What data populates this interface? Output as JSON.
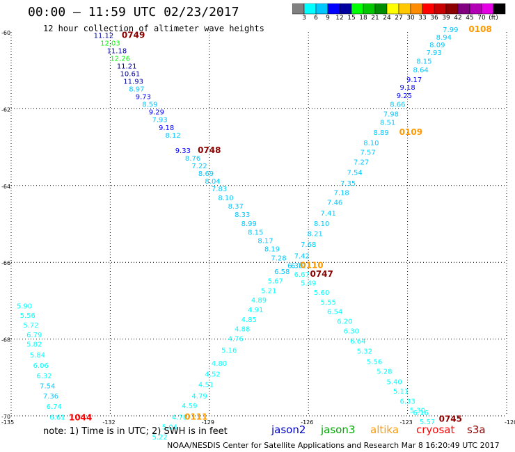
{
  "title": "00:00 — 11:59 UTC 02/23/2017",
  "subtitle": "12 hour collection of altimeter wave heights",
  "colorbar": {
    "colors": [
      "#808080",
      "#00ffff",
      "#00c8ff",
      "#0000ff",
      "#0000a0",
      "#00ff00",
      "#00c800",
      "#008c00",
      "#ffff00",
      "#ffc800",
      "#ff8c00",
      "#ff0000",
      "#c80000",
      "#8c0000",
      "#800080",
      "#b400b4",
      "#e600e6",
      "#000000"
    ],
    "labels": [
      "3",
      "6",
      "9",
      "12",
      "15",
      "18",
      "21",
      "24",
      "27",
      "30",
      "33",
      "36",
      "39",
      "42",
      "45",
      "70",
      "(ft)"
    ]
  },
  "map": {
    "lat_labels": [
      "-60",
      "-62",
      "-64",
      "-66",
      "-68",
      "-70"
    ],
    "lon_labels": [
      "-135",
      "-132",
      "-129",
      "-126",
      "-123",
      "-120"
    ]
  },
  "chart_data": {
    "type": "scatter",
    "title": "12 hour collection of altimeter wave heights",
    "xlabel": "",
    "ylabel": "",
    "xlim": [
      -135,
      -120
    ],
    "ylim": [
      -70,
      -60
    ],
    "grid": true,
    "passes": [
      {
        "label": "0749",
        "satellite": "jason2",
        "pts": [
          {
            "x": -132.2,
            "y": -60.15,
            "v": "11.12",
            "c": "#0000a0"
          },
          {
            "x": -132.0,
            "y": -60.35,
            "v": "12.03",
            "c": "#00ff00"
          },
          {
            "x": -131.8,
            "y": -60.55,
            "v": "11.18",
            "c": "#0000a0"
          },
          {
            "x": -131.7,
            "y": -60.75,
            "v": "12.26",
            "c": "#00ff00"
          },
          {
            "x": -131.5,
            "y": -60.95,
            "v": "11.21",
            "c": "#0000a0"
          },
          {
            "x": -131.4,
            "y": -61.15,
            "v": "10.61",
            "c": "#0000a0"
          },
          {
            "x": -131.3,
            "y": -61.35,
            "v": "11.93",
            "c": "#0000a0"
          },
          {
            "x": -131.2,
            "y": -61.55,
            "v": "8.97",
            "c": "#00c8ff"
          },
          {
            "x": -131.0,
            "y": -61.75,
            "v": "9.73",
            "c": "#0000ff"
          },
          {
            "x": -130.8,
            "y": -61.95,
            "v": "8.59",
            "c": "#00c8ff"
          },
          {
            "x": -130.6,
            "y": -62.15,
            "v": "9.29",
            "c": "#0000ff"
          },
          {
            "x": -130.5,
            "y": -62.35,
            "v": "7.93",
            "c": "#00c8ff"
          },
          {
            "x": -130.3,
            "y": -62.55,
            "v": "9.18",
            "c": "#0000ff"
          },
          {
            "x": -130.1,
            "y": -62.75,
            "v": "8.12",
            "c": "#00c8ff"
          },
          {
            "x": -129.8,
            "y": -63.15,
            "v": "9.33",
            "c": "#0000ff"
          },
          {
            "x": -129.5,
            "y": -63.35,
            "v": "8.76",
            "c": "#00c8ff"
          },
          {
            "x": -129.3,
            "y": -63.55,
            "v": "7.22",
            "c": "#00c8ff"
          },
          {
            "x": -129.1,
            "y": -63.75,
            "v": "8.69",
            "c": "#00c8ff"
          },
          {
            "x": -128.9,
            "y": -63.95,
            "v": "8.04",
            "c": "#00c8ff"
          },
          {
            "x": -128.7,
            "y": -64.15,
            "v": "7.83",
            "c": "#00c8ff"
          },
          {
            "x": -128.5,
            "y": -64.38,
            "v": "8.10",
            "c": "#00c8ff"
          },
          {
            "x": -128.2,
            "y": -64.6,
            "v": "8.37",
            "c": "#00c8ff"
          },
          {
            "x": -128.0,
            "y": -64.82,
            "v": "8.33",
            "c": "#00c8ff"
          },
          {
            "x": -127.8,
            "y": -65.05,
            "v": "8.99",
            "c": "#00c8ff"
          },
          {
            "x": -127.6,
            "y": -65.28,
            "v": "8.15",
            "c": "#00c8ff"
          },
          {
            "x": -127.3,
            "y": -65.5,
            "v": "8.17",
            "c": "#00c8ff"
          },
          {
            "x": -127.1,
            "y": -65.72,
            "v": "8.19",
            "c": "#00c8ff"
          },
          {
            "x": -126.9,
            "y": -65.95,
            "v": "7.28",
            "c": "#00c8ff"
          },
          {
            "x": -126.4,
            "y": -66.15,
            "v": "6.30",
            "c": "#00c8ff"
          },
          {
            "x": -126.2,
            "y": -66.38,
            "v": "6.67",
            "c": "#00ffff"
          },
          {
            "x": -126.0,
            "y": -66.6,
            "v": "5.49",
            "c": "#00ffff"
          },
          {
            "x": -125.6,
            "y": -66.85,
            "v": "5.60",
            "c": "#00ffff"
          },
          {
            "x": -125.4,
            "y": -67.1,
            "v": "5.55",
            "c": "#00ffff"
          },
          {
            "x": -125.2,
            "y": -67.35,
            "v": "6.54",
            "c": "#00ffff"
          },
          {
            "x": -124.9,
            "y": -67.6,
            "v": "6.20",
            "c": "#00ffff"
          },
          {
            "x": -124.7,
            "y": -67.85,
            "v": "6.30",
            "c": "#00ffff"
          },
          {
            "x": -124.5,
            "y": -68.12,
            "v": "6.64",
            "c": "#00ffff"
          },
          {
            "x": -124.3,
            "y": -68.38,
            "v": "5.32",
            "c": "#00ffff"
          },
          {
            "x": -124.0,
            "y": -68.65,
            "v": "5.56",
            "c": "#00ffff"
          },
          {
            "x": -123.7,
            "y": -68.9,
            "v": "5.28",
            "c": "#00ffff"
          },
          {
            "x": -123.4,
            "y": -69.18,
            "v": "5.40",
            "c": "#00ffff"
          },
          {
            "x": -123.2,
            "y": -69.42,
            "v": "5.11",
            "c": "#00ffff"
          },
          {
            "x": -123.0,
            "y": -69.68,
            "v": "6.33",
            "c": "#00ffff"
          }
        ]
      },
      {
        "label": "0108",
        "satellite": "jason3",
        "pts": [
          {
            "x": -121.7,
            "y": -60.0,
            "v": "7.99",
            "c": "#00c8ff"
          },
          {
            "x": -121.9,
            "y": -60.2,
            "v": "8.94",
            "c": "#00c8ff"
          },
          {
            "x": -122.1,
            "y": -60.4,
            "v": "8.09",
            "c": "#00c8ff"
          },
          {
            "x": -122.2,
            "y": -60.6,
            "v": "7.93",
            "c": "#00c8ff"
          },
          {
            "x": -122.5,
            "y": -60.82,
            "v": "8.15",
            "c": "#00c8ff"
          },
          {
            "x": -122.6,
            "y": -61.05,
            "v": "8.64",
            "c": "#00c8ff"
          },
          {
            "x": -122.8,
            "y": -61.3,
            "v": "9.17",
            "c": "#0000ff"
          },
          {
            "x": -123.0,
            "y": -61.5,
            "v": "9.18",
            "c": "#0000ff"
          },
          {
            "x": -123.1,
            "y": -61.72,
            "v": "9.25",
            "c": "#0000ff"
          },
          {
            "x": -123.3,
            "y": -61.95,
            "v": "8.66",
            "c": "#00c8ff"
          },
          {
            "x": -123.5,
            "y": -62.2,
            "v": "7.98",
            "c": "#00c8ff"
          },
          {
            "x": -123.6,
            "y": -62.42,
            "v": "8.51",
            "c": "#00c8ff"
          },
          {
            "x": -123.8,
            "y": -62.68,
            "v": "8.89",
            "c": "#00c8ff"
          },
          {
            "x": -124.1,
            "y": -62.95,
            "v": "8.10",
            "c": "#00c8ff"
          },
          {
            "x": -124.2,
            "y": -63.2,
            "v": "7.57",
            "c": "#00c8ff"
          },
          {
            "x": -124.4,
            "y": -63.45,
            "v": "7.27",
            "c": "#00c8ff"
          },
          {
            "x": -124.6,
            "y": -63.72,
            "v": "7.54",
            "c": "#00c8ff"
          },
          {
            "x": -124.8,
            "y": -64.0,
            "v": "7.35",
            "c": "#00c8ff"
          },
          {
            "x": -125.0,
            "y": -64.25,
            "v": "7.18",
            "c": "#00c8ff"
          },
          {
            "x": -125.2,
            "y": -64.5,
            "v": "7.46",
            "c": "#00c8ff"
          },
          {
            "x": -125.4,
            "y": -64.78,
            "v": "7.41",
            "c": "#00c8ff"
          },
          {
            "x": -125.6,
            "y": -65.05,
            "v": "8.10",
            "c": "#00c8ff"
          },
          {
            "x": -125.8,
            "y": -65.32,
            "v": "8.21",
            "c": "#00c8ff"
          },
          {
            "x": -126.0,
            "y": -65.6,
            "v": "7.68",
            "c": "#00c8ff"
          },
          {
            "x": -126.2,
            "y": -65.9,
            "v": "7.42",
            "c": "#00c8ff"
          },
          {
            "x": -126.3,
            "y": -66.15,
            "v": "6.72",
            "c": "#00c8ff"
          }
        ]
      },
      {
        "label": "0110",
        "satellite": "altika",
        "pts": [
          {
            "x": -126.8,
            "y": -66.3,
            "v": "6.58",
            "c": "#00c8ff"
          },
          {
            "x": -127.0,
            "y": -66.55,
            "v": "5.67",
            "c": "#00ffff"
          },
          {
            "x": -127.2,
            "y": -66.8,
            "v": "5.21",
            "c": "#00ffff"
          },
          {
            "x": -127.5,
            "y": -67.05,
            "v": "4.89",
            "c": "#00ffff"
          },
          {
            "x": -127.6,
            "y": -67.3,
            "v": "4.91",
            "c": "#00ffff"
          },
          {
            "x": -127.8,
            "y": -67.55,
            "v": "4.85",
            "c": "#00ffff"
          },
          {
            "x": -128.0,
            "y": -67.8,
            "v": "4.88",
            "c": "#00ffff"
          },
          {
            "x": -128.2,
            "y": -68.05,
            "v": "4.76",
            "c": "#00ffff"
          },
          {
            "x": -128.4,
            "y": -68.35,
            "v": "5.16",
            "c": "#00ffff"
          },
          {
            "x": -128.7,
            "y": -68.7,
            "v": "4.80",
            "c": "#00ffff"
          },
          {
            "x": -128.9,
            "y": -68.98,
            "v": "4.52",
            "c": "#00ffff"
          },
          {
            "x": -129.1,
            "y": -69.25,
            "v": "4.51",
            "c": "#00ffff"
          },
          {
            "x": -129.3,
            "y": -69.55,
            "v": "4.79",
            "c": "#00ffff"
          },
          {
            "x": -129.6,
            "y": -69.8,
            "v": "4.59",
            "c": "#00ffff"
          }
        ]
      },
      {
        "label": "0111",
        "satellite": "altika",
        "pts": [
          {
            "x": -129.9,
            "y": -70.1,
            "v": "4.78",
            "c": "#00ffff"
          },
          {
            "x": -130.2,
            "y": -70.35,
            "v": "5.04",
            "c": "#00ffff"
          },
          {
            "x": -130.5,
            "y": -70.62,
            "v": "5.22",
            "c": "#00ffff"
          }
        ]
      },
      {
        "label": "1044",
        "satellite": "cryosat",
        "pts": [
          {
            "x": -134.6,
            "y": -67.2,
            "v": "5.90",
            "c": "#00ffff"
          },
          {
            "x": -134.5,
            "y": -67.45,
            "v": "5.56",
            "c": "#00ffff"
          },
          {
            "x": -134.4,
            "y": -67.7,
            "v": "5.72",
            "c": "#00ffff"
          },
          {
            "x": -134.3,
            "y": -67.95,
            "v": "6.79",
            "c": "#00ffff"
          },
          {
            "x": -134.3,
            "y": -68.2,
            "v": "5.82",
            "c": "#00ffff"
          },
          {
            "x": -134.2,
            "y": -68.48,
            "v": "5.84",
            "c": "#00ffff"
          },
          {
            "x": -134.1,
            "y": -68.75,
            "v": "6.06",
            "c": "#00ffff"
          },
          {
            "x": -134.0,
            "y": -69.02,
            "v": "6.32",
            "c": "#00ffff"
          },
          {
            "x": -133.9,
            "y": -69.28,
            "v": "7.54",
            "c": "#00c8ff"
          },
          {
            "x": -133.8,
            "y": -69.55,
            "v": "7.36",
            "c": "#00c8ff"
          },
          {
            "x": -133.7,
            "y": -69.82,
            "v": "6.74",
            "c": "#00ffff"
          },
          {
            "x": -133.6,
            "y": -70.1,
            "v": "6.61",
            "c": "#00ffff"
          }
        ]
      },
      {
        "label": "0745",
        "satellite": "jason2",
        "pts": [
          {
            "x": -122.7,
            "y": -69.92,
            "v": "5.30",
            "c": "#00ffff"
          },
          {
            "x": -122.6,
            "y": -69.98,
            "v": "6.16",
            "c": "#00ffff"
          },
          {
            "x": -122.4,
            "y": -70.22,
            "v": "5.57",
            "c": "#00ffff"
          }
        ]
      }
    ],
    "track_labels": [
      {
        "text": "0749",
        "x": -131.3,
        "y": -60.15,
        "c": "#8c0000"
      },
      {
        "text": "0748",
        "x": -129.0,
        "y": -63.15,
        "c": "#8c0000"
      },
      {
        "text": "0108",
        "x": -120.8,
        "y": -60.0,
        "c": "#ff9900"
      },
      {
        "text": "0109",
        "x": -122.9,
        "y": -62.68,
        "c": "#ff9900"
      },
      {
        "text": "0110",
        "x": -125.9,
        "y": -66.15,
        "c": "#ff9900"
      },
      {
        "text": "0747",
        "x": -125.6,
        "y": -66.38,
        "c": "#8c0000"
      },
      {
        "text": "0111",
        "x": -129.4,
        "y": -70.1,
        "c": "#ff9900"
      },
      {
        "text": "1044",
        "x": -132.9,
        "y": -70.12,
        "c": "#ff0000"
      },
      {
        "text": "0745",
        "x": -121.7,
        "y": -70.15,
        "c": "#8c0000"
      }
    ]
  },
  "note": "note: 1) Time is in UTC; 2) SWH is in feet",
  "satellites": [
    {
      "name": "jason2",
      "color": "#0000cc"
    },
    {
      "name": "jason3",
      "color": "#00aa00"
    },
    {
      "name": "altika",
      "color": "#ff9900"
    },
    {
      "name": "cryosat",
      "color": "#ff0000"
    },
    {
      "name": "s3a",
      "color": "#8c0000"
    }
  ],
  "footer": "NOAA/NESDIS Center for Satellite Applications and Research   Mar  8 16:20:49 UTC 2017"
}
